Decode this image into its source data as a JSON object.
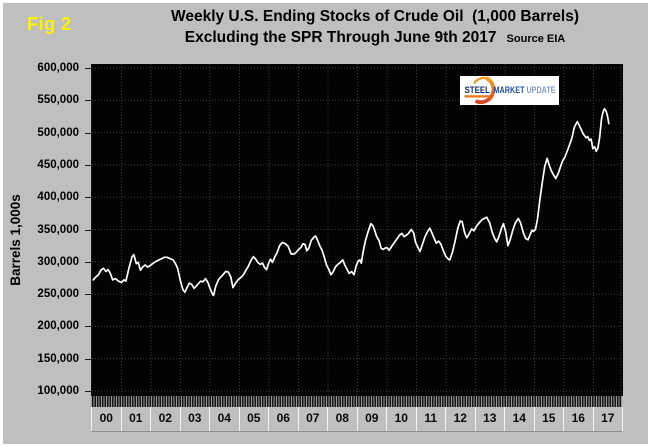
{
  "figure_label": "Fig 2",
  "title": {
    "line1": "Weekly U.S. Ending Stocks of Crude Oil  (1,000 Barrels)",
    "line2": "Excluding the SPR Through June 9th 2017",
    "source": "Source EIA"
  },
  "y_axis": {
    "title": "Barrels 1,000s",
    "tick_labels": [
      "600,000",
      "550,000",
      "500,000",
      "450,000",
      "400,000",
      "350,000",
      "300,000",
      "250,000",
      "200,000",
      "150,000",
      "100,000"
    ]
  },
  "x_axis": {
    "year_labels": [
      "00",
      "01",
      "02",
      "03",
      "04",
      "05",
      "06",
      "07",
      "08",
      "09",
      "10",
      "11",
      "12",
      "13",
      "14",
      "15",
      "16",
      "17"
    ]
  },
  "logo": {
    "word1": "STEEL",
    "word2": "MARKET",
    "word3": "UPDATE",
    "accent_color": "#ee7518",
    "word_colors": [
      "#123069",
      "#1d4f9e",
      "#8399c4"
    ]
  },
  "colors": {
    "background": "#bfbfbf",
    "plot_background": "#030303",
    "gridline": "#3e3e3e",
    "data_line": "#ffffff",
    "figure_label": "#fdf500",
    "title_text": "#000000"
  },
  "chart_data": {
    "type": "line",
    "title": "Weekly U.S. Ending Stocks of Crude Oil (1,000 Barrels)",
    "subtitle": "Excluding the SPR Through June 9th 2017",
    "source": "Source EIA",
    "ylabel": "Barrels 1,000s",
    "units": "1,000 barrels",
    "ylim": [
      100000,
      600000
    ],
    "ytick_step": 50000,
    "x_domain": [
      2000,
      2018
    ],
    "grid": "dotted",
    "legend": "none",
    "series": [
      {
        "name": "U.S. weekly ending stocks of crude oil excluding SPR",
        "color": "#ffffff",
        "points": [
          [
            2000.04,
            272000
          ],
          [
            2000.12,
            276000
          ],
          [
            2000.22,
            280000
          ],
          [
            2000.3,
            287000
          ],
          [
            2000.39,
            290000
          ],
          [
            2000.47,
            285000
          ],
          [
            2000.55,
            288000
          ],
          [
            2000.62,
            282000
          ],
          [
            2000.7,
            272000
          ],
          [
            2000.79,
            274000
          ],
          [
            2000.9,
            270000
          ],
          [
            2001.0,
            268000
          ],
          [
            2001.08,
            272000
          ],
          [
            2001.15,
            270000
          ],
          [
            2001.25,
            290000
          ],
          [
            2001.36,
            308000
          ],
          [
            2001.42,
            311000
          ],
          [
            2001.5,
            297000
          ],
          [
            2001.57,
            299000
          ],
          [
            2001.64,
            287000
          ],
          [
            2001.72,
            292000
          ],
          [
            2001.8,
            295000
          ],
          [
            2001.88,
            292000
          ],
          [
            2001.97,
            294000
          ],
          [
            2002.05,
            297000
          ],
          [
            2002.15,
            300000
          ],
          [
            2002.27,
            303000
          ],
          [
            2002.37,
            305000
          ],
          [
            2002.45,
            307000
          ],
          [
            2002.55,
            307000
          ],
          [
            2002.65,
            305000
          ],
          [
            2002.75,
            303000
          ],
          [
            2002.83,
            297000
          ],
          [
            2002.9,
            290000
          ],
          [
            2003.0,
            270000
          ],
          [
            2003.08,
            257000
          ],
          [
            2003.15,
            253000
          ],
          [
            2003.22,
            260000
          ],
          [
            2003.3,
            267000
          ],
          [
            2003.38,
            265000
          ],
          [
            2003.46,
            259000
          ],
          [
            2003.53,
            262000
          ],
          [
            2003.6,
            266000
          ],
          [
            2003.68,
            270000
          ],
          [
            2003.76,
            269000
          ],
          [
            2003.85,
            274000
          ],
          [
            2003.93,
            268000
          ],
          [
            2004.0,
            259000
          ],
          [
            2004.08,
            250000
          ],
          [
            2004.12,
            248000
          ],
          [
            2004.2,
            263000
          ],
          [
            2004.3,
            273000
          ],
          [
            2004.42,
            279000
          ],
          [
            2004.53,
            285000
          ],
          [
            2004.62,
            284000
          ],
          [
            2004.7,
            277000
          ],
          [
            2004.78,
            260000
          ],
          [
            2004.85,
            266000
          ],
          [
            2004.95,
            272000
          ],
          [
            2005.05,
            276000
          ],
          [
            2005.12,
            279000
          ],
          [
            2005.22,
            287000
          ],
          [
            2005.3,
            293000
          ],
          [
            2005.4,
            303000
          ],
          [
            2005.47,
            308000
          ],
          [
            2005.55,
            304000
          ],
          [
            2005.62,
            299000
          ],
          [
            2005.7,
            296000
          ],
          [
            2005.78,
            298000
          ],
          [
            2005.85,
            291000
          ],
          [
            2005.92,
            288000
          ],
          [
            2005.98,
            297000
          ],
          [
            2006.05,
            304000
          ],
          [
            2006.12,
            299000
          ],
          [
            2006.2,
            308000
          ],
          [
            2006.28,
            315000
          ],
          [
            2006.36,
            325000
          ],
          [
            2006.45,
            330000
          ],
          [
            2006.55,
            328000
          ],
          [
            2006.65,
            324000
          ],
          [
            2006.75,
            312000
          ],
          [
            2006.85,
            312000
          ],
          [
            2006.93,
            315000
          ],
          [
            2007.0,
            319000
          ],
          [
            2007.08,
            322000
          ],
          [
            2007.15,
            328000
          ],
          [
            2007.22,
            327000
          ],
          [
            2007.28,
            317000
          ],
          [
            2007.35,
            321000
          ],
          [
            2007.43,
            333000
          ],
          [
            2007.52,
            338000
          ],
          [
            2007.58,
            340000
          ],
          [
            2007.65,
            333000
          ],
          [
            2007.72,
            325000
          ],
          [
            2007.8,
            318000
          ],
          [
            2007.88,
            306000
          ],
          [
            2007.95,
            295000
          ],
          [
            2008.03,
            288000
          ],
          [
            2008.1,
            280000
          ],
          [
            2008.17,
            284000
          ],
          [
            2008.25,
            292000
          ],
          [
            2008.33,
            296000
          ],
          [
            2008.42,
            299000
          ],
          [
            2008.5,
            303000
          ],
          [
            2008.57,
            295000
          ],
          [
            2008.65,
            288000
          ],
          [
            2008.72,
            282000
          ],
          [
            2008.8,
            285000
          ],
          [
            2008.88,
            280000
          ],
          [
            2008.95,
            293000
          ],
          [
            2009.02,
            301000
          ],
          [
            2009.08,
            303000
          ],
          [
            2009.13,
            298000
          ],
          [
            2009.2,
            318000
          ],
          [
            2009.28,
            335000
          ],
          [
            2009.35,
            345000
          ],
          [
            2009.45,
            359000
          ],
          [
            2009.52,
            356000
          ],
          [
            2009.58,
            349000
          ],
          [
            2009.65,
            339000
          ],
          [
            2009.73,
            333000
          ],
          [
            2009.8,
            321000
          ],
          [
            2009.87,
            319000
          ],
          [
            2009.93,
            321000
          ],
          [
            2010.0,
            322000
          ],
          [
            2010.07,
            318000
          ],
          [
            2010.15,
            323000
          ],
          [
            2010.25,
            330000
          ],
          [
            2010.33,
            335000
          ],
          [
            2010.42,
            341000
          ],
          [
            2010.5,
            344000
          ],
          [
            2010.58,
            339000
          ],
          [
            2010.65,
            341000
          ],
          [
            2010.73,
            344000
          ],
          [
            2010.82,
            350000
          ],
          [
            2010.9,
            345000
          ],
          [
            2010.97,
            330000
          ],
          [
            2011.05,
            322000
          ],
          [
            2011.12,
            316000
          ],
          [
            2011.2,
            327000
          ],
          [
            2011.3,
            340000
          ],
          [
            2011.38,
            347000
          ],
          [
            2011.45,
            352000
          ],
          [
            2011.53,
            344000
          ],
          [
            2011.6,
            336000
          ],
          [
            2011.67,
            329000
          ],
          [
            2011.75,
            332000
          ],
          [
            2011.83,
            327000
          ],
          [
            2011.92,
            316000
          ],
          [
            2012.0,
            308000
          ],
          [
            2012.08,
            304000
          ],
          [
            2012.13,
            303000
          ],
          [
            2012.22,
            315000
          ],
          [
            2012.3,
            330000
          ],
          [
            2012.4,
            352000
          ],
          [
            2012.48,
            363000
          ],
          [
            2012.55,
            362000
          ],
          [
            2012.63,
            345000
          ],
          [
            2012.7,
            337000
          ],
          [
            2012.78,
            343000
          ],
          [
            2012.87,
            351000
          ],
          [
            2012.95,
            348000
          ],
          [
            2013.03,
            355000
          ],
          [
            2013.12,
            360000
          ],
          [
            2013.22,
            365000
          ],
          [
            2013.3,
            367000
          ],
          [
            2013.38,
            369000
          ],
          [
            2013.48,
            360000
          ],
          [
            2013.57,
            345000
          ],
          [
            2013.65,
            336000
          ],
          [
            2013.72,
            331000
          ],
          [
            2013.8,
            340000
          ],
          [
            2013.88,
            352000
          ],
          [
            2013.95,
            359000
          ],
          [
            2014.03,
            345000
          ],
          [
            2014.1,
            325000
          ],
          [
            2014.18,
            335000
          ],
          [
            2014.27,
            350000
          ],
          [
            2014.35,
            360000
          ],
          [
            2014.45,
            367000
          ],
          [
            2014.53,
            360000
          ],
          [
            2014.62,
            345000
          ],
          [
            2014.7,
            336000
          ],
          [
            2014.78,
            334000
          ],
          [
            2014.85,
            342000
          ],
          [
            2014.92,
            349000
          ],
          [
            2014.97,
            347000
          ],
          [
            2015.03,
            350000
          ],
          [
            2015.1,
            365000
          ],
          [
            2015.18,
            395000
          ],
          [
            2015.27,
            425000
          ],
          [
            2015.35,
            448000
          ],
          [
            2015.43,
            460000
          ],
          [
            2015.5,
            449000
          ],
          [
            2015.57,
            441000
          ],
          [
            2015.65,
            434000
          ],
          [
            2015.72,
            429000
          ],
          [
            2015.8,
            436000
          ],
          [
            2015.88,
            447000
          ],
          [
            2015.95,
            456000
          ],
          [
            2016.03,
            462000
          ],
          [
            2016.1,
            470000
          ],
          [
            2016.18,
            480000
          ],
          [
            2016.27,
            492000
          ],
          [
            2016.35,
            508000
          ],
          [
            2016.45,
            517000
          ],
          [
            2016.52,
            511000
          ],
          [
            2016.58,
            505000
          ],
          [
            2016.65,
            498000
          ],
          [
            2016.75,
            492000
          ],
          [
            2016.8,
            494000
          ],
          [
            2016.86,
            488000
          ],
          [
            2016.92,
            490000
          ],
          [
            2016.98,
            475000
          ],
          [
            2017.04,
            478000
          ],
          [
            2017.09,
            471000
          ],
          [
            2017.15,
            476000
          ],
          [
            2017.21,
            493000
          ],
          [
            2017.27,
            521000
          ],
          [
            2017.32,
            531000
          ],
          [
            2017.37,
            537000
          ],
          [
            2017.43,
            533000
          ],
          [
            2017.48,
            524000
          ],
          [
            2017.52,
            514000
          ]
        ]
      }
    ]
  }
}
